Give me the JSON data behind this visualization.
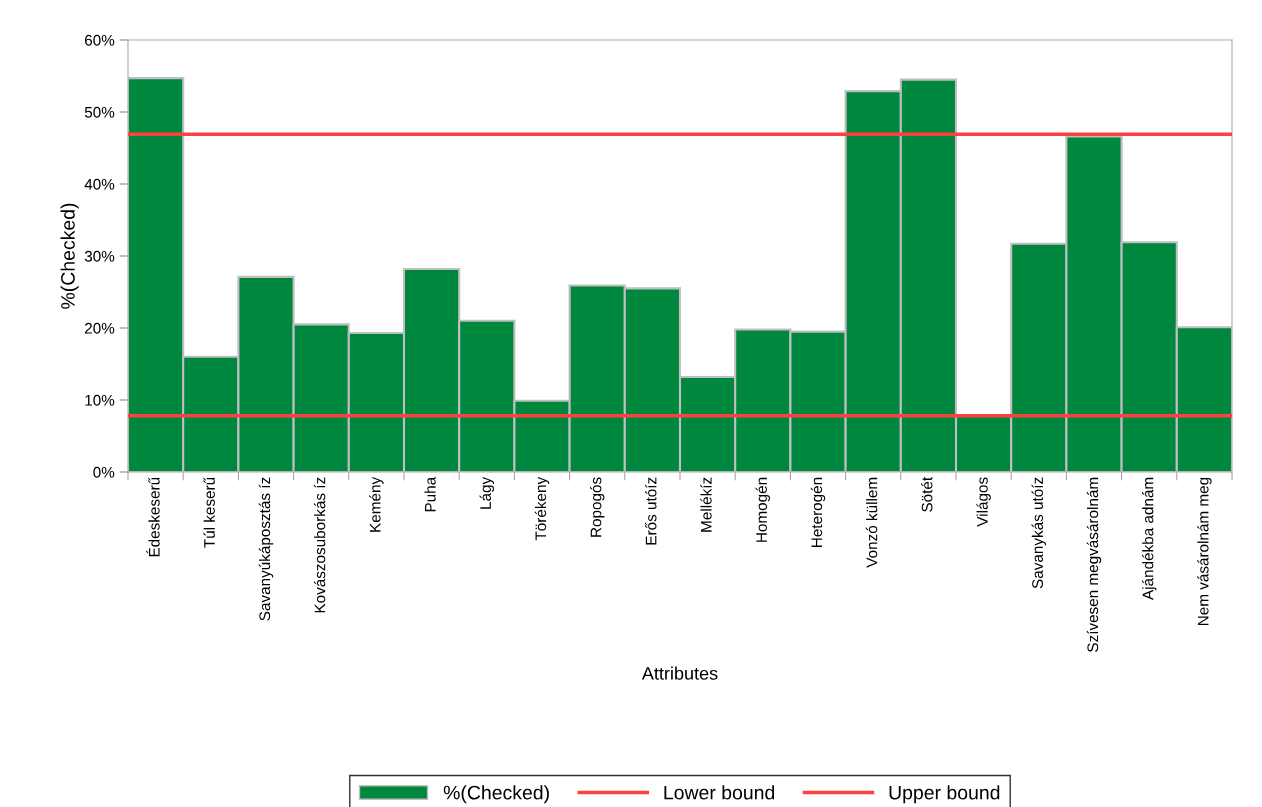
{
  "chart_data": {
    "type": "bar",
    "xlabel": "Attributes",
    "ylabel": "%(Checked)",
    "categories": [
      "Édeskeserű",
      "Túl keserű",
      "Savanyúkáposztás íz",
      "Kovászosuborkás íz",
      "Kemény",
      "Puha",
      "Lágy",
      "Törékeny",
      "Ropogós",
      "Erős utóíz",
      "Mellékíz",
      "Homogén",
      "Heterogén",
      "Vonzó küllem",
      "Sötét",
      "Világos",
      "Savanykás utóíz",
      "Szívesen megvásárolnám",
      "Ajándékba adnám",
      "Nem vásárolnám meg"
    ],
    "series": [
      {
        "name": "%(Checked)",
        "color": "#00873e",
        "values": [
          54.7,
          16.0,
          27.1,
          20.5,
          19.3,
          28.2,
          21.0,
          9.9,
          25.9,
          25.5,
          13.2,
          19.8,
          19.5,
          52.9,
          54.5,
          7.8,
          31.7,
          46.6,
          31.9,
          20.1
        ]
      }
    ],
    "ylim": [
      0,
      60
    ],
    "yticks": [
      {
        "value": 0,
        "label": "0%"
      },
      {
        "value": 10,
        "label": "10%"
      },
      {
        "value": 20,
        "label": "20%"
      },
      {
        "value": 30,
        "label": "30%"
      },
      {
        "value": 40,
        "label": "40%"
      },
      {
        "value": 50,
        "label": "50%"
      },
      {
        "value": 60,
        "label": "60%"
      }
    ],
    "ref_lines": [
      {
        "axis": "y",
        "value": 7.8,
        "label": "Lower bound",
        "color": "#ff4040"
      },
      {
        "axis": "y",
        "value": 46.9,
        "label": "Upper bound",
        "color": "#ff4040"
      }
    ],
    "grid": false,
    "legend": "bottom"
  }
}
